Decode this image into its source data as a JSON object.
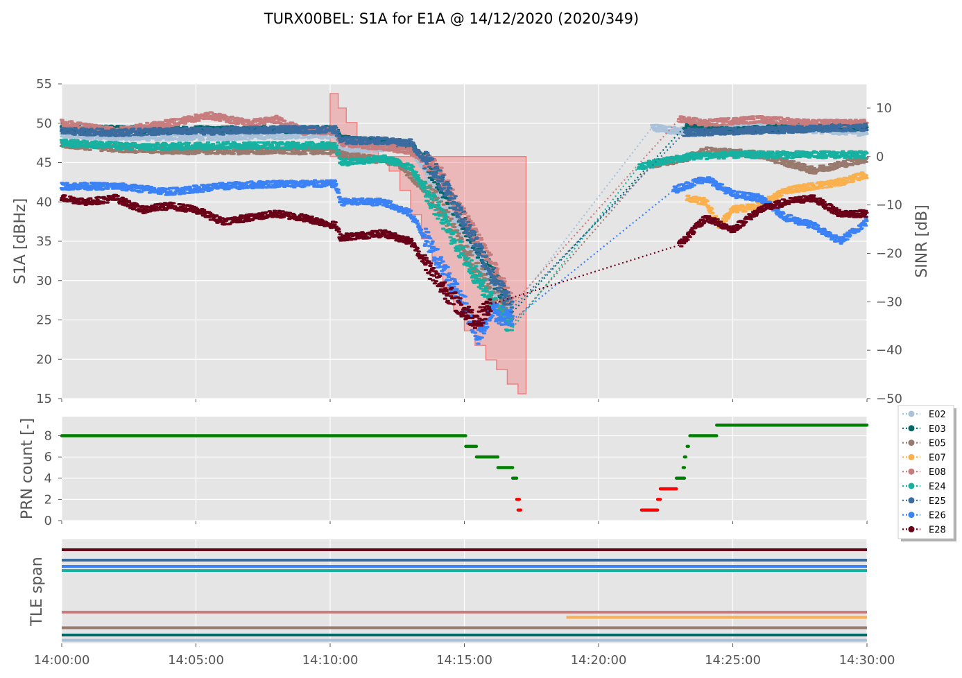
{
  "figure": {
    "title": "TURX00BEL: S1A for E1A @ 14/12/2020 (2020/349)"
  },
  "x_ticks": [
    "14:00:00",
    "14:05:00",
    "14:10:00",
    "14:15:00",
    "14:20:00",
    "14:25:00",
    "14:30:00"
  ],
  "colors": {
    "E02": "#a9c1d9",
    "E03": "#00686b",
    "E05": "#987a6e",
    "E07": "#fbb04e",
    "E08": "#c77c7e",
    "E24": "#16b1a1",
    "E25": "#3a6c9f",
    "E26": "#3b82f6",
    "E28": "#6a0017",
    "prn_ok": "#008000",
    "prn_bad": "#ff0000",
    "sinr_fill": "#f08080"
  },
  "legend": [
    "E02",
    "E03",
    "E05",
    "E07",
    "E08",
    "E24",
    "E25",
    "E26",
    "E28"
  ],
  "chart_data": [
    {
      "type": "scatter",
      "panel": "top",
      "xlabel": "",
      "ylabel": "S1A [dBHz]",
      "ylim": [
        15,
        55
      ],
      "y_ticks": [
        15,
        20,
        25,
        30,
        35,
        40,
        45,
        50,
        55
      ],
      "y2label": "SINR [dB]",
      "y2lim": [
        -50,
        15
      ],
      "y2_ticks": [
        -50,
        -40,
        -30,
        -20,
        -10,
        0,
        10
      ],
      "x_unit": "minutes after 14:00:00",
      "grid": true,
      "series": [
        {
          "name": "E02",
          "points": [
            [
              0,
              48.5
            ],
            [
              3,
              48.2
            ],
            [
              6,
              48.3
            ],
            [
              9,
              48.5
            ],
            [
              10.2,
              48.5
            ],
            [
              10.4,
              46.5
            ],
            [
              11.5,
              46.8
            ],
            [
              12.5,
              47.0
            ],
            [
              13,
              46.8
            ],
            [
              14,
              42
            ],
            [
              15,
              36
            ],
            [
              16,
              30
            ],
            [
              16.8,
              26.5
            ],
            [
              22,
              49.5
            ],
            [
              23,
              49.0
            ],
            [
              24,
              49.2
            ],
            [
              26,
              49.5
            ],
            [
              28,
              49.2
            ],
            [
              30,
              48.8
            ]
          ]
        },
        {
          "name": "E03",
          "points": [
            [
              0,
              49.3
            ],
            [
              3,
              49.2
            ],
            [
              6,
              49.2
            ],
            [
              9,
              49.2
            ],
            [
              10.2,
              49.2
            ],
            [
              10.4,
              48.0
            ],
            [
              12,
              47.5
            ],
            [
              13,
              47.3
            ],
            [
              14,
              43
            ],
            [
              15,
              37
            ],
            [
              16,
              31
            ],
            [
              16.8,
              26
            ],
            [
              23.2,
              49.5
            ],
            [
              25,
              49.0
            ],
            [
              27,
              49.5
            ],
            [
              30,
              49.5
            ]
          ]
        },
        {
          "name": "E05",
          "points": [
            [
              0,
              47.3
            ],
            [
              2,
              46.8
            ],
            [
              4,
              46.5
            ],
            [
              6,
              46.5
            ],
            [
              8,
              46.5
            ],
            [
              10.2,
              46.5
            ],
            [
              10.4,
              46.0
            ],
            [
              11.5,
              45.5
            ],
            [
              12.5,
              45.0
            ],
            [
              14,
              40
            ],
            [
              15,
              34
            ],
            [
              16,
              28.5
            ],
            [
              16.8,
              24.5
            ],
            [
              22,
              44.8
            ],
            [
              23.2,
              45.5
            ],
            [
              24,
              46.5
            ],
            [
              26,
              46.0
            ],
            [
              28,
              44.0
            ],
            [
              30,
              45.5
            ]
          ]
        },
        {
          "name": "E07",
          "points": [
            [
              23.3,
              40.5
            ],
            [
              24,
              40.0
            ],
            [
              24.5,
              37.0
            ],
            [
              25,
              39.0
            ],
            [
              26,
              39.5
            ],
            [
              27,
              41.5
            ],
            [
              28,
              42.0
            ],
            [
              29,
              42.5
            ],
            [
              30,
              43.5
            ]
          ]
        },
        {
          "name": "E08",
          "points": [
            [
              0,
              50.0
            ],
            [
              2,
              49.0
            ],
            [
              4,
              50.0
            ],
            [
              5.5,
              51.0
            ],
            [
              7,
              50.0
            ],
            [
              8,
              50.5
            ],
            [
              9,
              49.0
            ],
            [
              10.2,
              49.0
            ],
            [
              10.4,
              47.5
            ],
            [
              12,
              47.0
            ],
            [
              13,
              46.5
            ],
            [
              14,
              44
            ],
            [
              15,
              38
            ],
            [
              16,
              32
            ],
            [
              16.8,
              27
            ],
            [
              23,
              50.5
            ],
            [
              24,
              50.0
            ],
            [
              25,
              50.3
            ],
            [
              26,
              50.5
            ],
            [
              28,
              50.0
            ],
            [
              30,
              50.0
            ]
          ]
        },
        {
          "name": "E24",
          "points": [
            [
              0,
              47.5
            ],
            [
              3,
              47.0
            ],
            [
              6,
              47.2
            ],
            [
              9,
              47.2
            ],
            [
              10.2,
              47.2
            ],
            [
              10.4,
              45.0
            ],
            [
              12,
              45.5
            ],
            [
              13,
              44.5
            ],
            [
              14,
              39
            ],
            [
              15,
              33
            ],
            [
              16,
              27.5
            ],
            [
              16.8,
              24
            ],
            [
              21.5,
              44.5
            ],
            [
              23.4,
              45.8
            ],
            [
              25,
              46.0
            ],
            [
              27,
              46.0
            ],
            [
              30,
              46.0
            ]
          ]
        },
        {
          "name": "E25",
          "points": [
            [
              0,
              49.0
            ],
            [
              2,
              48.8
            ],
            [
              4,
              49.0
            ],
            [
              6,
              49.0
            ],
            [
              8,
              49.2
            ],
            [
              10.2,
              49.2
            ],
            [
              10.4,
              47.8
            ],
            [
              12,
              47.8
            ],
            [
              13,
              47.5
            ],
            [
              14,
              43.5
            ],
            [
              15,
              37.5
            ],
            [
              16,
              31
            ],
            [
              16.8,
              26.5
            ],
            [
              23.2,
              48.8
            ],
            [
              25,
              49.0
            ],
            [
              27,
              49.2
            ],
            [
              30,
              49.5
            ]
          ]
        },
        {
          "name": "E26",
          "points": [
            [
              0,
              42.0
            ],
            [
              2,
              42.0
            ],
            [
              4,
              41.3
            ],
            [
              6,
              42.0
            ],
            [
              8,
              42.3
            ],
            [
              10.2,
              42.3
            ],
            [
              10.4,
              40.0
            ],
            [
              12,
              40.0
            ],
            [
              13,
              38.5
            ],
            [
              14,
              33
            ],
            [
              15,
              27
            ],
            [
              15.5,
              23
            ],
            [
              16,
              26
            ],
            [
              16.8,
              25
            ],
            [
              22.8,
              41.5
            ],
            [
              24,
              43.0
            ],
            [
              25,
              41.0
            ],
            [
              26,
              40.5
            ],
            [
              27,
              38.0
            ],
            [
              28,
              37.0
            ],
            [
              29,
              35.0
            ],
            [
              30,
              37.5
            ]
          ]
        },
        {
          "name": "E28",
          "points": [
            [
              0,
              40.5
            ],
            [
              1,
              40.0
            ],
            [
              2,
              40.5
            ],
            [
              3,
              39.0
            ],
            [
              4,
              39.5
            ],
            [
              5,
              39.0
            ],
            [
              6,
              37.5
            ],
            [
              7,
              38.0
            ],
            [
              8,
              38.5
            ],
            [
              9,
              38.0
            ],
            [
              10.2,
              37.0
            ],
            [
              10.4,
              35.5
            ],
            [
              12,
              36.0
            ],
            [
              13,
              35.0
            ],
            [
              14,
              30
            ],
            [
              15,
              26
            ],
            [
              15.5,
              25
            ],
            [
              16,
              27
            ],
            [
              23,
              34.5
            ],
            [
              24,
              38.0
            ],
            [
              25,
              36.5
            ],
            [
              26,
              39.0
            ],
            [
              27,
              40.0
            ],
            [
              28,
              40.5
            ],
            [
              29,
              38.5
            ],
            [
              30,
              38.5
            ]
          ]
        }
      ],
      "sinr_area": [
        [
          10,
          13
        ],
        [
          10.3,
          13
        ],
        [
          10.3,
          10
        ],
        [
          10.6,
          10
        ],
        [
          10.6,
          7
        ],
        [
          11,
          7
        ],
        [
          11,
          4
        ],
        [
          11.4,
          4
        ],
        [
          11.4,
          2
        ],
        [
          11.8,
          2
        ],
        [
          11.8,
          0
        ],
        [
          12.2,
          0
        ],
        [
          12.2,
          -3
        ],
        [
          12.6,
          -3
        ],
        [
          12.6,
          -7
        ],
        [
          13,
          -7
        ],
        [
          13,
          -12
        ],
        [
          13.4,
          -12
        ],
        [
          13.4,
          -17
        ],
        [
          13.8,
          -17
        ],
        [
          13.8,
          -22
        ],
        [
          14.2,
          -22
        ],
        [
          14.2,
          -27
        ],
        [
          14.6,
          -27
        ],
        [
          14.6,
          -32
        ],
        [
          15,
          -32
        ],
        [
          15,
          -36
        ],
        [
          15.4,
          -36
        ],
        [
          15.4,
          -39
        ],
        [
          15.8,
          -39
        ],
        [
          15.8,
          -42
        ],
        [
          16.2,
          -42
        ],
        [
          16.2,
          -44
        ],
        [
          16.6,
          -44
        ],
        [
          16.6,
          -47
        ],
        [
          17,
          -47
        ],
        [
          17,
          -49
        ],
        [
          17.3,
          -49
        ],
        [
          17.3,
          0
        ]
      ]
    },
    {
      "type": "scatter",
      "panel": "middle",
      "xlabel": "",
      "ylabel": "PRN count [-]",
      "ylim": [
        0,
        9.8
      ],
      "y_ticks": [
        0,
        2,
        4,
        6,
        8
      ],
      "x_unit": "minutes after 14:00:00",
      "grid": true,
      "segments": [
        {
          "x0": 0,
          "x1": 15.05,
          "value": 8,
          "status": "ok"
        },
        {
          "x0": 15.05,
          "x1": 15.45,
          "value": 7,
          "status": "ok"
        },
        {
          "x0": 15.45,
          "x1": 16.25,
          "value": 6,
          "status": "ok"
        },
        {
          "x0": 16.25,
          "x1": 16.8,
          "value": 5,
          "status": "ok"
        },
        {
          "x0": 16.8,
          "x1": 16.95,
          "value": 4,
          "status": "ok"
        },
        {
          "x0": 16.95,
          "x1": 17.05,
          "value": 2,
          "status": "bad"
        },
        {
          "x0": 17.0,
          "x1": 17.1,
          "value": 1,
          "status": "bad"
        },
        {
          "x0": 21.6,
          "x1": 22.2,
          "value": 1,
          "status": "bad"
        },
        {
          "x0": 22.2,
          "x1": 22.3,
          "value": 2,
          "status": "bad"
        },
        {
          "x0": 22.3,
          "x1": 22.9,
          "value": 3,
          "status": "bad"
        },
        {
          "x0": 22.9,
          "x1": 23.2,
          "value": 4,
          "status": "ok"
        },
        {
          "x0": 23.15,
          "x1": 23.2,
          "value": 5,
          "status": "ok"
        },
        {
          "x0": 23.2,
          "x1": 23.25,
          "value": 6,
          "status": "ok"
        },
        {
          "x0": 23.3,
          "x1": 23.35,
          "value": 7,
          "status": "ok"
        },
        {
          "x0": 23.4,
          "x1": 24.4,
          "value": 8,
          "status": "ok"
        },
        {
          "x0": 24.4,
          "x1": 30,
          "value": 9,
          "status": "ok"
        }
      ]
    },
    {
      "type": "line",
      "panel": "bottom",
      "xlabel": "",
      "ylabel": "TLE span",
      "x_unit": "minutes after 14:00:00",
      "grid": true,
      "spans": [
        {
          "name": "E28",
          "level": 9,
          "x0": 0,
          "x1": 30
        },
        {
          "name": "E25",
          "level": 8,
          "x0": 0,
          "x1": 30
        },
        {
          "name": "E26",
          "level": 7.4,
          "x0": 0,
          "x1": 30
        },
        {
          "name": "E24",
          "level": 7,
          "x0": 0,
          "x1": 30
        },
        {
          "name": "E08",
          "level": 3,
          "x0": 0,
          "x1": 30
        },
        {
          "name": "E07",
          "level": 2.5,
          "x0": 18.8,
          "x1": 30
        },
        {
          "name": "E05",
          "level": 1.5,
          "x0": 0,
          "x1": 30
        },
        {
          "name": "E03",
          "level": 0.8,
          "x0": 0,
          "x1": 30
        },
        {
          "name": "E02",
          "level": 0.3,
          "x0": 0,
          "x1": 30
        }
      ]
    }
  ]
}
